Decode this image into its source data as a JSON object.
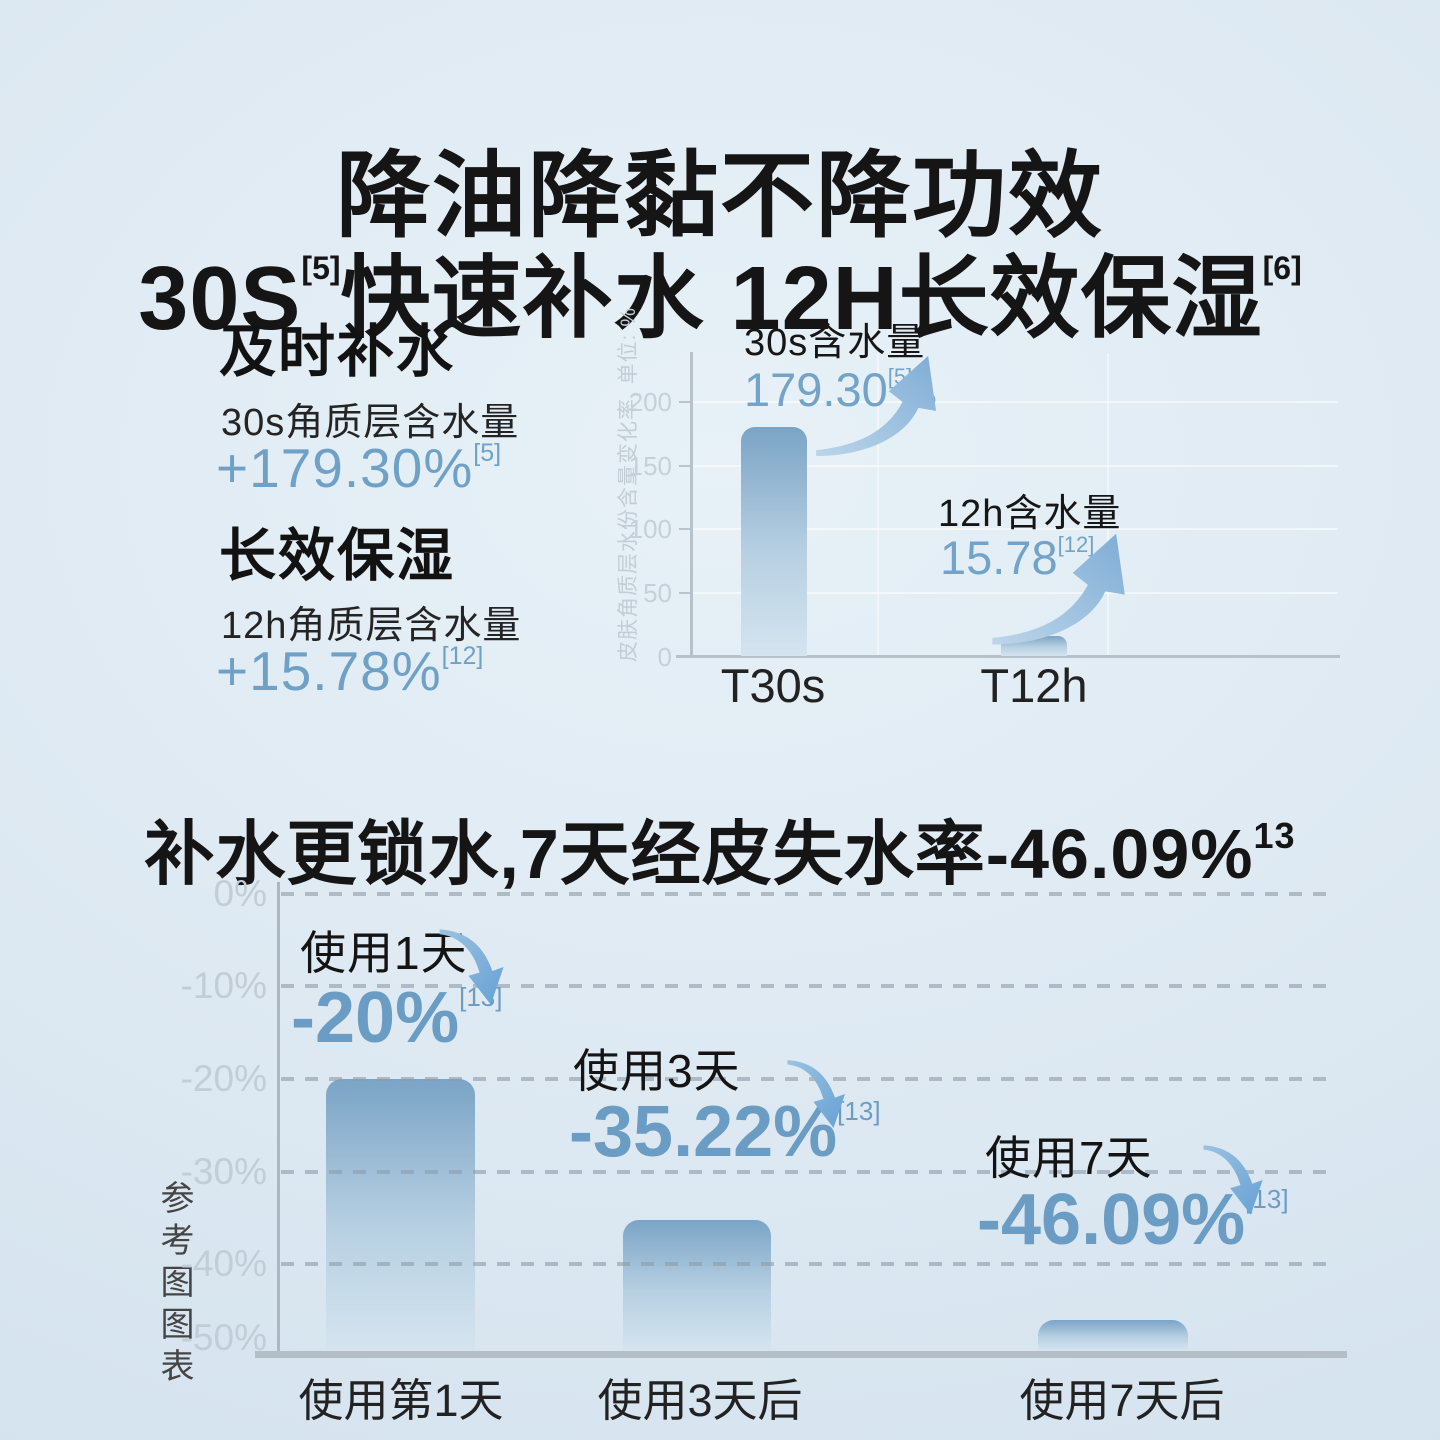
{
  "header": {
    "line1": "降油降黏不降功效",
    "line2_prefix": "30S",
    "line2_sup1": "[5]",
    "line2_mid": "快速补水 12H长效保湿",
    "line2_sup2": "[6]"
  },
  "features": [
    {
      "heading": "及时补水",
      "subtext": "30s角质层含水量",
      "value": "+179.30%",
      "sup": "[5]"
    },
    {
      "heading": "长效保湿",
      "subtext": "12h角质层含水量",
      "value": "+15.78%",
      "sup": "[12]"
    }
  ],
  "section2": {
    "title": "补水更锁水,7天经皮失水率-46.09%",
    "title_sup": "13"
  },
  "colors": {
    "background": "#dce9f3",
    "title_text": "#151515",
    "accent_blue": "#6fa1c7",
    "bar_top": "#7aa4c6",
    "bar_bottom": "#d5e4ef",
    "arrow_blue": "#79aad4",
    "grid_gray": "#8d9ba8",
    "tick_faint": "#c2cdd5",
    "axis_gray": "#adb7bf"
  },
  "chart_data": [
    {
      "type": "bar",
      "title": "30S快速补水 12H长效保湿",
      "categories": [
        "T30s",
        "T12h"
      ],
      "values": [
        179.3,
        15.78
      ],
      "xlabel": "",
      "ylabel": "皮肤角质层水份含量变化率, 单位: %",
      "yticks": [
        0,
        50,
        100,
        150,
        200
      ],
      "ylim": [
        0,
        240
      ],
      "grid": "faint",
      "legend": "none",
      "annotations": [
        {
          "label": "30s含水量",
          "value": "179.30",
          "sup": "[5]",
          "unit": "%"
        },
        {
          "label": "12h含水量",
          "value": "15.78",
          "sup": "[12]",
          "unit": "%"
        }
      ]
    },
    {
      "type": "bar",
      "title": "补水更锁水,7天经皮失水率-46.09%[13]",
      "categories": [
        "使用第1天",
        "使用3天后",
        "使用7天后"
      ],
      "values": [
        -20,
        -35.22,
        -46.09
      ],
      "xlabel": "",
      "ylabel": "",
      "yticks": [
        "0%",
        "-10%",
        "-20%",
        "-30%",
        "-40%",
        "-50%"
      ],
      "ylim": [
        0,
        -50
      ],
      "grid": "dashed-horizontal",
      "legend": "none",
      "side_label": "参考图图表",
      "annotations": [
        {
          "label": "使用1天",
          "value": "-20%",
          "sup": "[13]"
        },
        {
          "label": "使用3天",
          "value": "-35.22%",
          "sup": "[13]"
        },
        {
          "label": "使用7天",
          "value": "-46.09%",
          "sup": "[13]"
        }
      ]
    }
  ]
}
